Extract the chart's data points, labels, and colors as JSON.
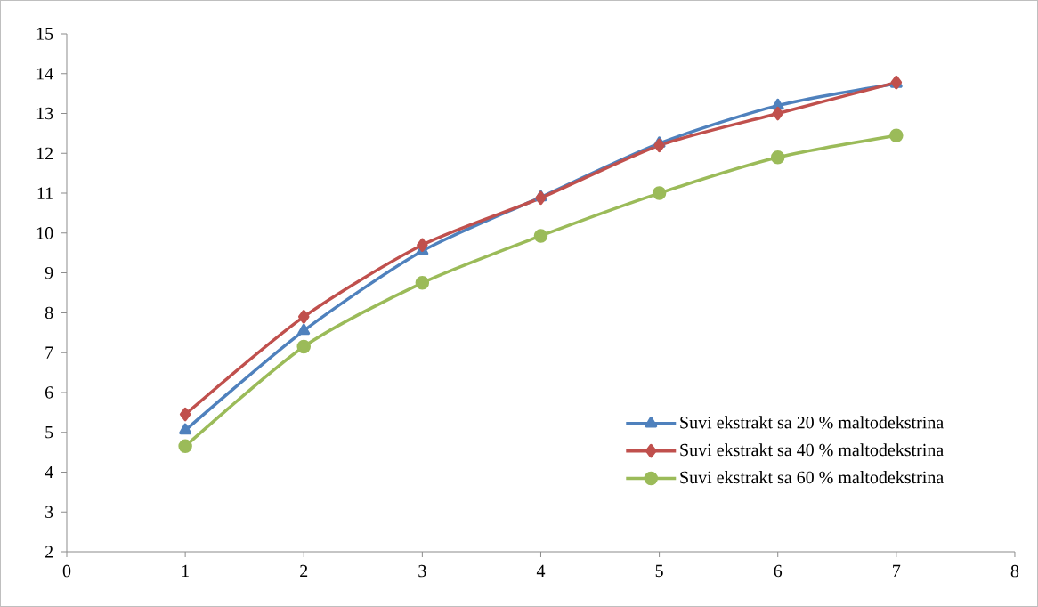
{
  "chart_data": {
    "type": "line",
    "xlim": [
      0,
      8
    ],
    "xticks": [
      0,
      1,
      2,
      3,
      4,
      5,
      6,
      7,
      8
    ],
    "ylim": [
      2,
      15
    ],
    "yticks": [
      2,
      3,
      4,
      5,
      6,
      7,
      8,
      9,
      10,
      11,
      12,
      13,
      14,
      15
    ],
    "x": [
      1,
      2,
      3,
      4,
      5,
      6,
      7
    ],
    "grid": false,
    "legend": "bottom right",
    "series": [
      {
        "name": "Suvi ekstrakt sa 20 % maltodekstrina",
        "color": "#4f81bd",
        "marker": "triangle",
        "values": [
          5.05,
          7.55,
          9.55,
          10.9,
          12.25,
          13.2,
          13.75
        ]
      },
      {
        "name": "Suvi ekstrakt sa 40 % maltodekstrina",
        "color": "#c0504d",
        "marker": "diamond",
        "values": [
          5.45,
          7.9,
          9.7,
          10.88,
          12.2,
          13.0,
          13.78
        ]
      },
      {
        "name": "Suvi ekstrakt sa 60 % maltodekstrina",
        "color": "#9bbb59",
        "marker": "circle",
        "values": [
          4.65,
          7.15,
          8.75,
          9.93,
          11.0,
          11.9,
          12.45
        ]
      }
    ]
  }
}
